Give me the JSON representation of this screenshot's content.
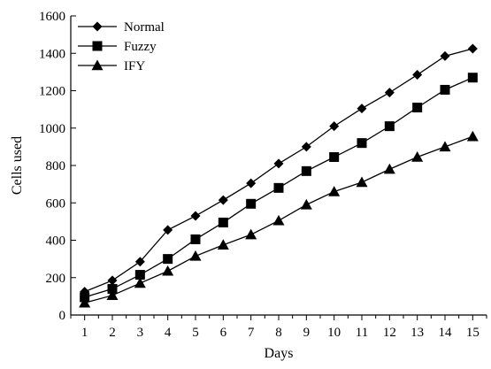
{
  "chart_data": {
    "type": "line",
    "title": "",
    "xlabel": "Days",
    "ylabel": "Cells used",
    "x": [
      1,
      2,
      3,
      4,
      5,
      6,
      7,
      8,
      9,
      10,
      11,
      12,
      13,
      14,
      15
    ],
    "xlim": [
      0.5,
      15.5
    ],
    "ylim": [
      0,
      1600
    ],
    "yticks": [
      0,
      200,
      400,
      600,
      800,
      1000,
      1200,
      1400,
      1600
    ],
    "grid": false,
    "legend_position": "top-left",
    "series": [
      {
        "name": "Normal",
        "marker": "diamond",
        "color": "#000000",
        "values": [
          125,
          185,
          285,
          455,
          530,
          615,
          705,
          810,
          900,
          1010,
          1105,
          1190,
          1285,
          1385,
          1425
        ]
      },
      {
        "name": "Fuzzy",
        "marker": "square",
        "color": "#000000",
        "values": [
          95,
          140,
          215,
          300,
          405,
          495,
          595,
          680,
          770,
          845,
          920,
          1010,
          1110,
          1205,
          1270
        ]
      },
      {
        "name": "IFY",
        "marker": "triangle",
        "color": "#000000",
        "values": [
          65,
          105,
          170,
          235,
          315,
          375,
          430,
          505,
          590,
          660,
          710,
          780,
          845,
          900,
          955
        ]
      }
    ]
  }
}
